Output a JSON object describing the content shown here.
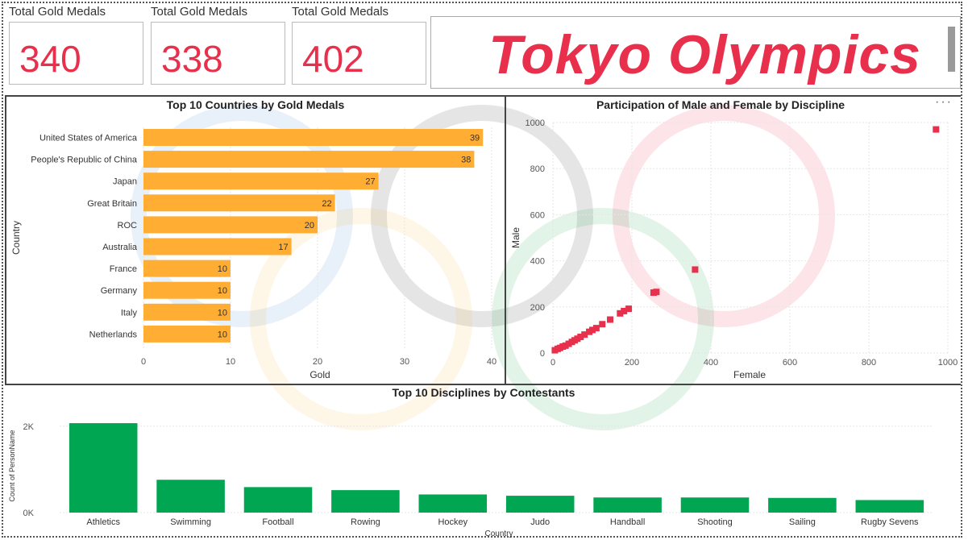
{
  "kpis": [
    {
      "title": "Total Gold Medals",
      "value": "340"
    },
    {
      "title": "Total Gold Medals",
      "value": "338"
    },
    {
      "title": "Total Gold Medals",
      "value": "402"
    }
  ],
  "banner": {
    "text": "Tokyo Olympics"
  },
  "more_label": "···",
  "colors": {
    "accent": "#e8304c",
    "bar_orange": "#ffad33",
    "bar_green": "#00a651",
    "scatter": "#e8304c"
  },
  "chart_data": [
    {
      "type": "bar",
      "orientation": "horizontal",
      "title": "Top 10 Countries by Gold Medals",
      "xlabel": "Gold",
      "ylabel": "Country",
      "categories": [
        "United States of America",
        "People's Republic of China",
        "Japan",
        "Great Britain",
        "ROC",
        "Australia",
        "France",
        "Germany",
        "Italy",
        "Netherlands"
      ],
      "values": [
        39,
        38,
        27,
        22,
        20,
        17,
        10,
        10,
        10,
        10
      ],
      "xlim": [
        0,
        40
      ],
      "xticks": [
        "0",
        "10",
        "20",
        "30",
        "40"
      ],
      "data_labels": true
    },
    {
      "type": "scatter",
      "title": "Participation of Male and Female by Discipline",
      "xlabel": "Female",
      "ylabel": "Male",
      "xlim": [
        0,
        1000
      ],
      "ylim": [
        0,
        1000
      ],
      "xticks": [
        "0",
        "200",
        "400",
        "600",
        "800",
        "1000"
      ],
      "yticks": [
        "0",
        "200",
        "400",
        "600",
        "800",
        "1000"
      ],
      "points": [
        {
          "x": 5,
          "y": 12
        },
        {
          "x": 12,
          "y": 18
        },
        {
          "x": 18,
          "y": 22
        },
        {
          "x": 25,
          "y": 28
        },
        {
          "x": 32,
          "y": 32
        },
        {
          "x": 40,
          "y": 40
        },
        {
          "x": 48,
          "y": 48
        },
        {
          "x": 55,
          "y": 55
        },
        {
          "x": 62,
          "y": 62
        },
        {
          "x": 70,
          "y": 70
        },
        {
          "x": 80,
          "y": 80
        },
        {
          "x": 92,
          "y": 92
        },
        {
          "x": 100,
          "y": 100
        },
        {
          "x": 110,
          "y": 108
        },
        {
          "x": 125,
          "y": 125
        },
        {
          "x": 145,
          "y": 145
        },
        {
          "x": 170,
          "y": 172
        },
        {
          "x": 180,
          "y": 182
        },
        {
          "x": 192,
          "y": 192
        },
        {
          "x": 255,
          "y": 262
        },
        {
          "x": 262,
          "y": 265
        },
        {
          "x": 360,
          "y": 362
        },
        {
          "x": 970,
          "y": 970
        }
      ]
    },
    {
      "type": "bar",
      "orientation": "vertical",
      "title": "Top 10 Disciplines by Contestants",
      "xlabel": "Country",
      "ylabel": "Count of PersonName",
      "categories": [
        "Athletics",
        "Swimming",
        "Football",
        "Rowing",
        "Hockey",
        "Judo",
        "Handball",
        "Shooting",
        "Sailing",
        "Rugby Sevens"
      ],
      "values": [
        2070,
        760,
        590,
        520,
        420,
        390,
        350,
        350,
        340,
        290
      ],
      "ylim": [
        0,
        2500
      ],
      "yticks": [
        {
          "label": "0K",
          "value": 0
        },
        {
          "label": "2K",
          "value": 2000
        }
      ]
    }
  ]
}
